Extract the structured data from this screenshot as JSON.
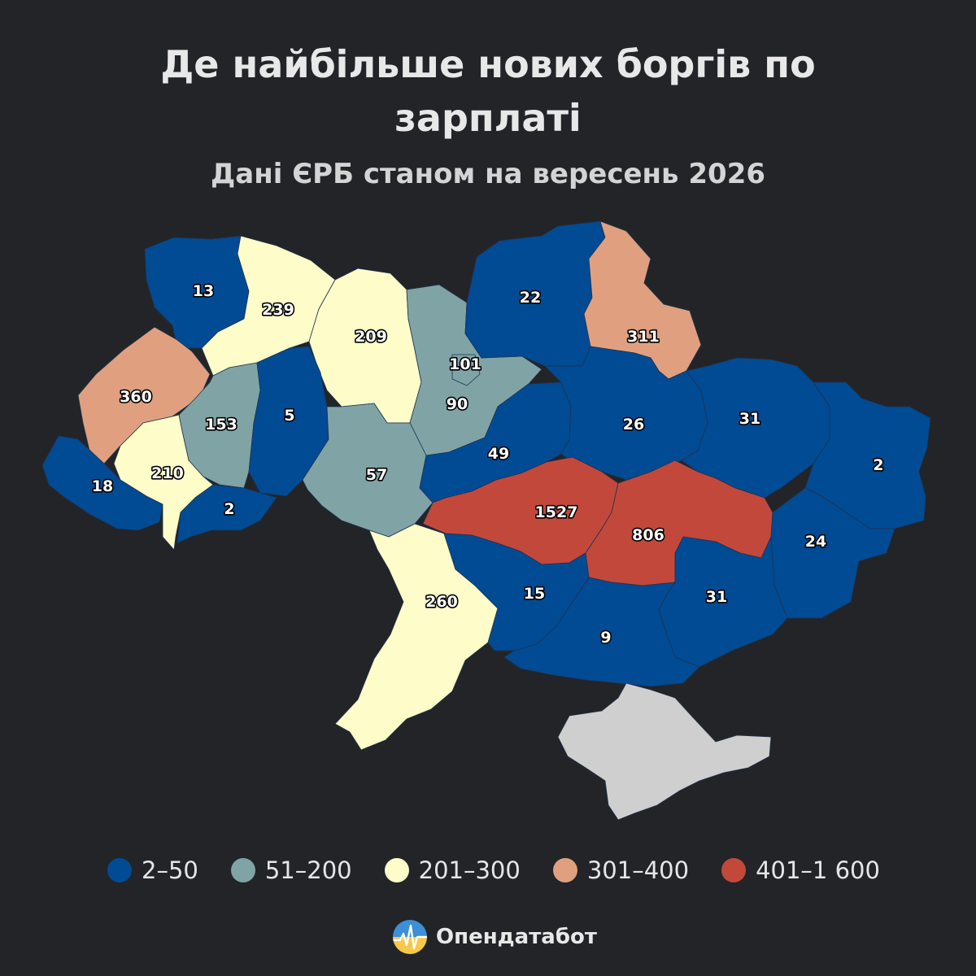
{
  "title": "Де найбільше нових боргів по зарплаті",
  "subtitle": "Дані ЄРБ станом на вересень 2026",
  "colors": {
    "background": "#222428",
    "bin_2_50": "#014b94",
    "bin_51_200": "#80a4a6",
    "bin_201_300": "#fefcc8",
    "bin_301_400": "#e0a07f",
    "bin_401_1600": "#c3483c",
    "no_data": "#cfcfcf"
  },
  "legend": [
    {
      "label": "2–50",
      "color": "#014b94"
    },
    {
      "label": "51–200",
      "color": "#80a4a6"
    },
    {
      "label": "201–300",
      "color": "#fefcc8"
    },
    {
      "label": "301–400",
      "color": "#e0a07f"
    },
    {
      "label": "401–1 600",
      "color": "#c3483c"
    }
  ],
  "regions": [
    {
      "id": "volyn",
      "value": "13",
      "bin": "2–50"
    },
    {
      "id": "rivne",
      "value": "239",
      "bin": "201–300"
    },
    {
      "id": "zhytomyr",
      "value": "209",
      "bin": "201–300"
    },
    {
      "id": "kyiv-oblast",
      "value": "101",
      "bin": "51–200"
    },
    {
      "id": "kyiv-city",
      "value": "90",
      "bin": "51–200"
    },
    {
      "id": "chernihiv",
      "value": "22",
      "bin": "2–50"
    },
    {
      "id": "sumy",
      "value": "311",
      "bin": "301–400"
    },
    {
      "id": "lviv",
      "value": "360",
      "bin": "301–400"
    },
    {
      "id": "ternopil",
      "value": "153",
      "bin": "51–200"
    },
    {
      "id": "khmelnytskyi",
      "value": "5",
      "bin": "2–50"
    },
    {
      "id": "vinnytsia",
      "value": "57",
      "bin": "51–200"
    },
    {
      "id": "cherkasy",
      "value": "49",
      "bin": "2–50"
    },
    {
      "id": "poltava",
      "value": "26",
      "bin": "2–50"
    },
    {
      "id": "kharkiv",
      "value": "31",
      "bin": "2–50"
    },
    {
      "id": "luhansk",
      "value": "2",
      "bin": "2–50"
    },
    {
      "id": "zakarpattia",
      "value": "18",
      "bin": "2–50"
    },
    {
      "id": "ivano-frankivsk",
      "value": "210",
      "bin": "201–300"
    },
    {
      "id": "chernivtsi",
      "value": "2",
      "bin": "2–50"
    },
    {
      "id": "kirovohrad",
      "value": "1527",
      "bin": "401–1 600"
    },
    {
      "id": "dnipropetrovsk",
      "value": "806",
      "bin": "401–1 600"
    },
    {
      "id": "donetsk",
      "value": "24",
      "bin": "2–50"
    },
    {
      "id": "odesa",
      "value": "260",
      "bin": "201–300"
    },
    {
      "id": "mykolaiv",
      "value": "15",
      "bin": "2–50"
    },
    {
      "id": "zaporizhzhia",
      "value": "31",
      "bin": "2–50"
    },
    {
      "id": "kherson",
      "value": "9",
      "bin": "2–50"
    },
    {
      "id": "crimea",
      "value": "",
      "bin": "no data"
    }
  ],
  "brand": {
    "name": "Опендатабот",
    "logo": "opendatabot-logo-icon"
  }
}
